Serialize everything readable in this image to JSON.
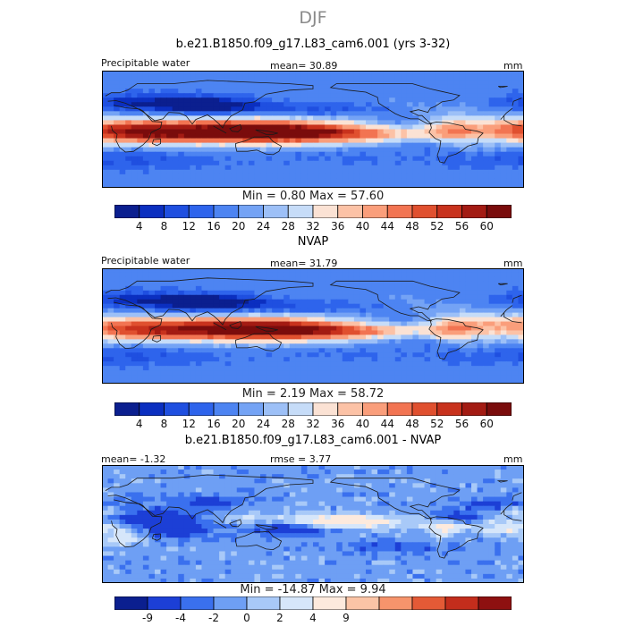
{
  "super_title": "DJF",
  "chart_data": [
    {
      "type": "heatmap",
      "title": "b.e21.B1850.f09_g17.L83_cam6.001 (yrs 3-32)",
      "left_label": "Precipitable water",
      "center_label": "mean=  30.89",
      "right_label": "mm",
      "min_max_text": "Min =    0.80  Max =   57.60",
      "mean": 30.89,
      "min": 0.8,
      "max": 57.6,
      "colorbar_ticks": [
        "4",
        "8",
        "12",
        "16",
        "20",
        "24",
        "28",
        "32",
        "36",
        "40",
        "44",
        "48",
        "52",
        "56",
        "60"
      ],
      "colorbar_levels": [
        4,
        8,
        12,
        16,
        20,
        24,
        28,
        32,
        36,
        40,
        44,
        48,
        52,
        56,
        60
      ],
      "colormap": [
        "#0b1f8f",
        "#0b2fc0",
        "#1f4fe0",
        "#2e64ec",
        "#4d84f2",
        "#74a3f5",
        "#9dc0f7",
        "#c6dcf8",
        "#fbe2d4",
        "#fcc2a6",
        "#fa9e7b",
        "#f27452",
        "#e0502f",
        "#c8321d",
        "#a31b13",
        "#7a0c0c"
      ]
    },
    {
      "type": "heatmap",
      "title": "NVAP",
      "left_label": "Precipitable water",
      "center_label": "mean=  31.79",
      "right_label": "mm",
      "min_max_text": "Min =    2.19  Max =   58.72",
      "mean": 31.79,
      "min": 2.19,
      "max": 58.72,
      "colorbar_ticks": [
        "4",
        "8",
        "12",
        "16",
        "20",
        "24",
        "28",
        "32",
        "36",
        "40",
        "44",
        "48",
        "52",
        "56",
        "60"
      ],
      "colorbar_levels": [
        4,
        8,
        12,
        16,
        20,
        24,
        28,
        32,
        36,
        40,
        44,
        48,
        52,
        56,
        60
      ],
      "colormap": [
        "#0b1f8f",
        "#0b2fc0",
        "#1f4fe0",
        "#2e64ec",
        "#4d84f2",
        "#74a3f5",
        "#9dc0f7",
        "#c6dcf8",
        "#fbe2d4",
        "#fcc2a6",
        "#fa9e7b",
        "#f27452",
        "#e0502f",
        "#c8321d",
        "#a31b13",
        "#7a0c0c"
      ]
    },
    {
      "type": "heatmap",
      "title": "b.e21.B1850.f09_g17.L83_cam6.001 - NVAP",
      "left_label": "mean=  -1.32",
      "center_label": "rmse =   3.77",
      "right_label": "mm",
      "min_max_text": "Min = -14.87  Max =    9.94",
      "mean": -1.32,
      "rmse": 3.77,
      "min": -14.87,
      "max": 9.94,
      "colorbar_ticks": [
        "-9",
        "-4",
        "-2",
        "0",
        "2",
        "4",
        "9"
      ],
      "colorbar_levels": [
        -9,
        -4,
        -2,
        0,
        2,
        4,
        9
      ],
      "colormap": [
        "#0b1f8f",
        "#1c3fd6",
        "#3a70ee",
        "#6e9ff4",
        "#a8c9f8",
        "#d6e6fa",
        "#fdeadd",
        "#fbc4a6",
        "#f6946c",
        "#e45a36",
        "#c32d1c",
        "#8e1010"
      ]
    }
  ]
}
